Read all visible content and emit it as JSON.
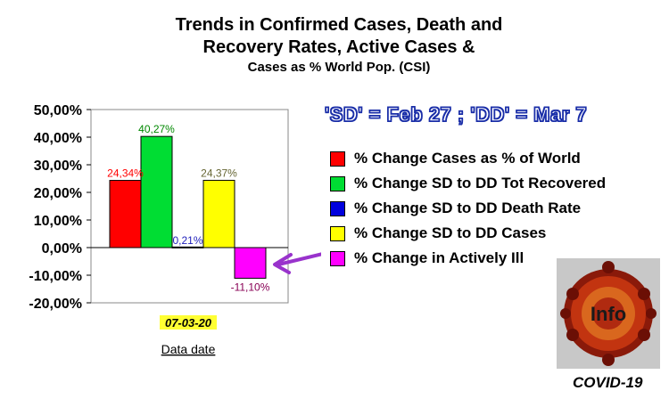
{
  "title": {
    "line1": "Trends in Confirmed Cases, Death and",
    "line2": "Recovery Rates, Active Cases &",
    "line3": "Cases as % World Pop. (CSI)"
  },
  "period_note": "'SD' = Feb 27 ; 'DD' = Mar 7",
  "logo_text": "Info",
  "covid_label": "COVID-19",
  "chart_data": {
    "type": "bar",
    "categories": [
      "07-03-20"
    ],
    "xlabel": "Data date",
    "ylim": [
      -0.2,
      0.5
    ],
    "yticks": [
      "-20,00%",
      "-10,00%",
      "0,00%",
      "10,00%",
      "20,00%",
      "30,00%",
      "40,00%",
      "50,00%"
    ],
    "ytick_values": [
      -0.2,
      -0.1,
      0,
      0.1,
      0.2,
      0.3,
      0.4,
      0.5
    ],
    "series": [
      {
        "name": "% Change Cases as % of World",
        "value": 0.2434,
        "label": "24,34%",
        "color": "#ff0000",
        "label_color": "#ff0000"
      },
      {
        "name": "% Change SD to DD Tot Recovered",
        "value": 0.4027,
        "label": "40,27%",
        "color": "#00dd33",
        "label_color": "#008800"
      },
      {
        "name": "% Change SD to DD Death Rate",
        "value": 0.0021,
        "label": "0,21%",
        "color": "#0000dd",
        "label_color": "#2222bb"
      },
      {
        "name": "% Change SD to DD Cases",
        "value": 0.2437,
        "label": "24,37%",
        "color": "#ffff00",
        "label_color": "#666633"
      },
      {
        "name": "% Change in Actively Ill",
        "value": -0.111,
        "label": "-11,10%",
        "color": "#ff00ff",
        "label_color": "#880055"
      }
    ],
    "grid": false,
    "legend_position": "right"
  }
}
